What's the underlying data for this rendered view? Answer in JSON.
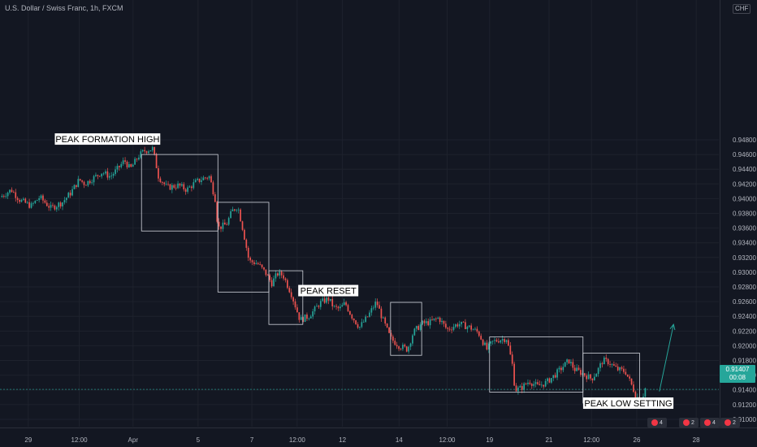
{
  "header": {
    "title": "U.S. Dollar / Swiss Franc, 1h, FXCM",
    "currency": "CHF"
  },
  "price_badge": {
    "price": "0.91407",
    "countdown": "00:08"
  },
  "colors": {
    "background": "#131722",
    "up": "#26a69a",
    "down": "#ef5350",
    "grid": "#1e222d",
    "axis_text": "#b2b5be",
    "box": "#d1d4dc",
    "arrow": "#26a69a"
  },
  "events": [
    {
      "label": "4"
    },
    {
      "label": "2"
    },
    {
      "label": "4"
    },
    {
      "label": "2"
    }
  ],
  "chart_data": {
    "type": "candlestick",
    "symbol": "USD/CHF",
    "interval": "1h",
    "source": "FXCM",
    "ylim": [
      0.909,
      0.967
    ],
    "y_ticks": [
      "0.94800",
      "0.94600",
      "0.94400",
      "0.94200",
      "0.94000",
      "0.93800",
      "0.93600",
      "0.93400",
      "0.93200",
      "0.93000",
      "0.92800",
      "0.92600",
      "0.92400",
      "0.92200",
      "0.92000",
      "0.91800",
      "0.91600",
      "0.91400",
      "0.91200",
      "0.91000"
    ],
    "y_tick_values": [
      0.948,
      0.946,
      0.944,
      0.942,
      0.94,
      0.938,
      0.936,
      0.934,
      0.932,
      0.93,
      0.928,
      0.926,
      0.924,
      0.922,
      0.92,
      0.918,
      0.916,
      0.914,
      0.912,
      0.91
    ],
    "x_ticks": [
      {
        "label": "29",
        "x": 0
      },
      {
        "label": "12:00",
        "x": 18
      },
      {
        "label": "Apr",
        "x": 37
      },
      {
        "label": "5",
        "x": 60
      },
      {
        "label": "7",
        "x": 79
      },
      {
        "label": "12:00",
        "x": 95
      },
      {
        "label": "12",
        "x": 111
      },
      {
        "label": "14",
        "x": 131
      },
      {
        "label": "12:00",
        "x": 148
      },
      {
        "label": "19",
        "x": 163
      },
      {
        "label": "21",
        "x": 184
      },
      {
        "label": "12:00",
        "x": 199
      },
      {
        "label": "26",
        "x": 215
      },
      {
        "label": "28",
        "x": 236
      }
    ],
    "x_range": [
      -10,
      244
    ],
    "path": [
      [
        -10,
        0.9402
      ],
      [
        -6,
        0.9412
      ],
      [
        -3,
        0.9398
      ],
      [
        1,
        0.939
      ],
      [
        4,
        0.9402
      ],
      [
        8,
        0.9387
      ],
      [
        12,
        0.9395
      ],
      [
        15,
        0.9408
      ],
      [
        18,
        0.9426
      ],
      [
        20,
        0.942
      ],
      [
        23,
        0.9428
      ],
      [
        26,
        0.9436
      ],
      [
        29,
        0.943
      ],
      [
        31,
        0.9438
      ],
      [
        34,
        0.9452
      ],
      [
        36,
        0.944
      ],
      [
        39,
        0.9458
      ],
      [
        41,
        0.9465
      ],
      [
        44,
        0.9468
      ],
      [
        46,
        0.943
      ],
      [
        49,
        0.9415
      ],
      [
        53,
        0.9418
      ],
      [
        56,
        0.9412
      ],
      [
        59,
        0.9422
      ],
      [
        62,
        0.9428
      ],
      [
        64,
        0.943
      ],
      [
        66,
        0.94
      ],
      [
        67,
        0.936
      ],
      [
        70,
        0.9365
      ],
      [
        72,
        0.9383
      ],
      [
        74,
        0.939
      ],
      [
        76,
        0.9355
      ],
      [
        78,
        0.9315
      ],
      [
        81,
        0.9312
      ],
      [
        84,
        0.9298
      ],
      [
        86,
        0.9285
      ],
      [
        88,
        0.9298
      ],
      [
        90,
        0.9296
      ],
      [
        93,
        0.927
      ],
      [
        96,
        0.9235
      ],
      [
        99,
        0.924
      ],
      [
        101,
        0.9248
      ],
      [
        103,
        0.9258
      ],
      [
        106,
        0.9264
      ],
      [
        108,
        0.9252
      ],
      [
        110,
        0.925
      ],
      [
        112,
        0.9258
      ],
      [
        114,
        0.9242
      ],
      [
        117,
        0.9225
      ],
      [
        120,
        0.924
      ],
      [
        123,
        0.926
      ],
      [
        125,
        0.9238
      ],
      [
        128,
        0.921
      ],
      [
        131,
        0.92
      ],
      [
        134,
        0.9195
      ],
      [
        136,
        0.9218
      ],
      [
        139,
        0.923
      ],
      [
        142,
        0.9232
      ],
      [
        145,
        0.9238
      ],
      [
        148,
        0.9222
      ],
      [
        152,
        0.923
      ],
      [
        156,
        0.9225
      ],
      [
        159,
        0.9218
      ],
      [
        162,
        0.9195
      ],
      [
        164,
        0.9205
      ],
      [
        166,
        0.9208
      ],
      [
        169,
        0.921
      ],
      [
        171,
        0.9175
      ],
      [
        172,
        0.914
      ],
      [
        174,
        0.9142
      ],
      [
        177,
        0.9152
      ],
      [
        180,
        0.9145
      ],
      [
        183,
        0.915
      ],
      [
        186,
        0.916
      ],
      [
        189,
        0.9172
      ],
      [
        191,
        0.918
      ],
      [
        193,
        0.9168
      ],
      [
        196,
        0.9162
      ],
      [
        199,
        0.9155
      ],
      [
        201,
        0.9165
      ],
      [
        203,
        0.918
      ],
      [
        205,
        0.9178
      ],
      [
        208,
        0.9168
      ],
      [
        211,
        0.9165
      ],
      [
        213,
        0.9148
      ],
      [
        215,
        0.913
      ],
      [
        217,
        0.913
      ],
      [
        218,
        0.9142
      ]
    ],
    "last_price": 0.91407,
    "annotations": [
      {
        "text": "PEAK FORMATION HIGH",
        "x": 28,
        "y": 0.9481
      },
      {
        "text": "PEAK RESET",
        "x": 106,
        "y": 0.9275
      },
      {
        "text": "PEAK LOW SETTING",
        "x": 212,
        "y": 0.9122
      }
    ],
    "boxes": [
      {
        "x0": 40,
        "x1": 67,
        "y0": 0.9356,
        "y1": 0.946
      },
      {
        "x0": 67,
        "x1": 85,
        "y0": 0.9273,
        "y1": 0.9395
      },
      {
        "x0": 85,
        "x1": 97,
        "y0": 0.9229,
        "y1": 0.9302
      },
      {
        "x0": 128,
        "x1": 139,
        "y0": 0.9187,
        "y1": 0.9259
      },
      {
        "x0": 163,
        "x1": 196,
        "y0": 0.9137,
        "y1": 0.9212
      },
      {
        "x0": 196,
        "x1": 216,
        "y0": 0.9122,
        "y1": 0.919
      }
    ],
    "arrow": {
      "x0": 223,
      "y0": 0.9138,
      "x1": 228,
      "y1": 0.9229
    }
  }
}
